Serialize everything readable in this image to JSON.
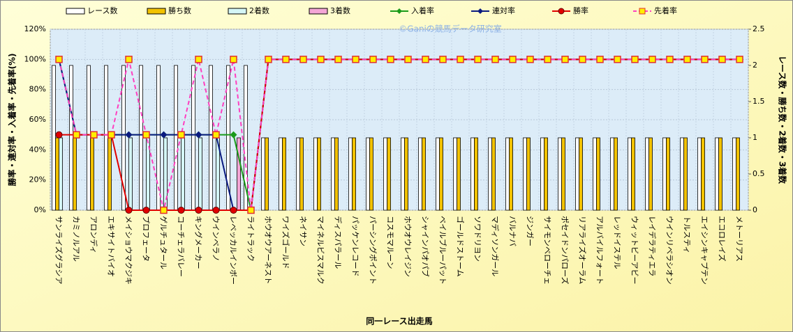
{
  "chart_data": {
    "type": "bar-line",
    "watermark": "©Ganiの競馬データ研究室",
    "x_label": "同一レース出走馬",
    "y_label": "勝率・連対率・入着率・先着率(%)",
    "y2_label": "レース数・勝ち数・2着数・3着数",
    "categories": [
      "サンライズグラシア",
      "カミノルアル",
      "アロンディ",
      "エキサイトバイオ",
      "メイショウマクジキ",
      "プロフェータ",
      "ゲルチュタール",
      "コーチェラバレー",
      "キングメーカー",
      "ウインベラノ",
      "レベッカルインボー",
      "ライトラック",
      "ホウオウアーネスト",
      "ワイズゴールド",
      "ネイサン",
      "マイネルビスマルク",
      "ディスパラール",
      "パッケンレコード",
      "パーシングポイント",
      "コスモマルーン",
      "ホウオウレイジン",
      "シャインパオパブ",
      "ベイルブルーパット",
      "ゴールドストーム",
      "ソワドリヨン",
      "マディソンガール",
      "バルナバ",
      "ジンガー",
      "サイモンベローチェ",
      "ポセイドンパローズ",
      "リアライズオーラム",
      "アルバイルフォート",
      "レッドイステル",
      "ウィットビーアビー",
      "レイデラティエラ",
      "ウインリベラシオン",
      "トルスティ",
      "エイシンキャプテン",
      "エコロレイズ",
      "メトーリアス"
    ],
    "ylim": [
      0,
      120
    ],
    "yticks": [
      {
        "value": 0,
        "label": "0%"
      },
      {
        "value": 20,
        "label": "20%"
      },
      {
        "value": 40,
        "label": "40%"
      },
      {
        "value": 60,
        "label": "60%"
      },
      {
        "value": 80,
        "label": "80%"
      },
      {
        "value": 100,
        "label": "100%"
      },
      {
        "value": 120,
        "label": "120%"
      }
    ],
    "y2lim": [
      0,
      2.5
    ],
    "y2ticks": [
      0,
      0.5,
      1,
      1.5,
      2,
      2.5
    ],
    "grid": true,
    "series": [
      {
        "name": "レース数",
        "kind": "bar",
        "axis": "y2",
        "color": "#ffffff",
        "values": [
          2,
          2,
          2,
          2,
          2,
          2,
          2,
          2,
          2,
          2,
          2,
          2,
          1,
          1,
          1,
          1,
          1,
          1,
          1,
          1,
          1,
          1,
          1,
          1,
          1,
          1,
          1,
          1,
          1,
          1,
          1,
          1,
          1,
          1,
          1,
          1,
          1,
          1,
          1,
          1
        ]
      },
      {
        "name": "勝ち数",
        "kind": "bar",
        "axis": "y2",
        "color": "#f2c200",
        "values": [
          1,
          1,
          1,
          1,
          0,
          0,
          0,
          0,
          0,
          0,
          0,
          0,
          1,
          1,
          1,
          1,
          1,
          1,
          1,
          1,
          1,
          1,
          1,
          1,
          1,
          1,
          1,
          1,
          1,
          1,
          1,
          1,
          1,
          1,
          1,
          1,
          1,
          1,
          1,
          1
        ]
      },
      {
        "name": "2着数",
        "kind": "bar",
        "axis": "y2",
        "color": "#d4f6f6",
        "values": [
          1,
          0,
          0,
          0,
          1,
          1,
          1,
          1,
          1,
          1,
          0,
          0,
          0,
          0,
          0,
          0,
          0,
          0,
          0,
          0,
          0,
          0,
          0,
          0,
          0,
          0,
          0,
          0,
          0,
          0,
          0,
          0,
          0,
          0,
          0,
          0,
          0,
          0,
          0,
          0
        ]
      },
      {
        "name": "3着数",
        "kind": "bar",
        "axis": "y2",
        "color": "#f4a6d6",
        "values": [
          0,
          0,
          0,
          0,
          0,
          0,
          0,
          0,
          0,
          0,
          1,
          0,
          0,
          0,
          0,
          0,
          0,
          0,
          0,
          0,
          0,
          0,
          0,
          0,
          0,
          0,
          0,
          0,
          0,
          0,
          0,
          0,
          0,
          0,
          0,
          0,
          0,
          0,
          0,
          0
        ]
      },
      {
        "name": "入着率",
        "kind": "line",
        "marker": "diamond",
        "color": "#1a9a1a",
        "values": [
          100,
          50,
          50,
          50,
          50,
          50,
          50,
          50,
          50,
          50,
          50,
          0,
          100,
          100,
          100,
          100,
          100,
          100,
          100,
          100,
          100,
          100,
          100,
          100,
          100,
          100,
          100,
          100,
          100,
          100,
          100,
          100,
          100,
          100,
          100,
          100,
          100,
          100,
          100,
          100
        ]
      },
      {
        "name": "連対率",
        "kind": "line",
        "marker": "diamond",
        "color": "#0a1a80",
        "values": [
          100,
          50,
          50,
          50,
          50,
          50,
          50,
          50,
          50,
          50,
          0,
          0,
          100,
          100,
          100,
          100,
          100,
          100,
          100,
          100,
          100,
          100,
          100,
          100,
          100,
          100,
          100,
          100,
          100,
          100,
          100,
          100,
          100,
          100,
          100,
          100,
          100,
          100,
          100,
          100
        ]
      },
      {
        "name": "勝率",
        "kind": "line",
        "marker": "circle",
        "color": "#e00000",
        "values": [
          50,
          50,
          50,
          50,
          0,
          0,
          0,
          0,
          0,
          0,
          0,
          0,
          100,
          100,
          100,
          100,
          100,
          100,
          100,
          100,
          100,
          100,
          100,
          100,
          100,
          100,
          100,
          100,
          100,
          100,
          100,
          100,
          100,
          100,
          100,
          100,
          100,
          100,
          100,
          100
        ]
      },
      {
        "name": "先着率",
        "kind": "line",
        "marker": "square",
        "dashed": true,
        "color": "#ff40c0",
        "values": [
          100,
          50,
          50,
          50,
          100,
          50,
          0,
          50,
          100,
          50,
          100,
          0,
          100,
          100,
          100,
          100,
          100,
          100,
          100,
          100,
          100,
          100,
          100,
          100,
          100,
          100,
          100,
          100,
          100,
          100,
          100,
          100,
          100,
          100,
          100,
          100,
          100,
          100,
          100,
          100
        ]
      }
    ]
  }
}
